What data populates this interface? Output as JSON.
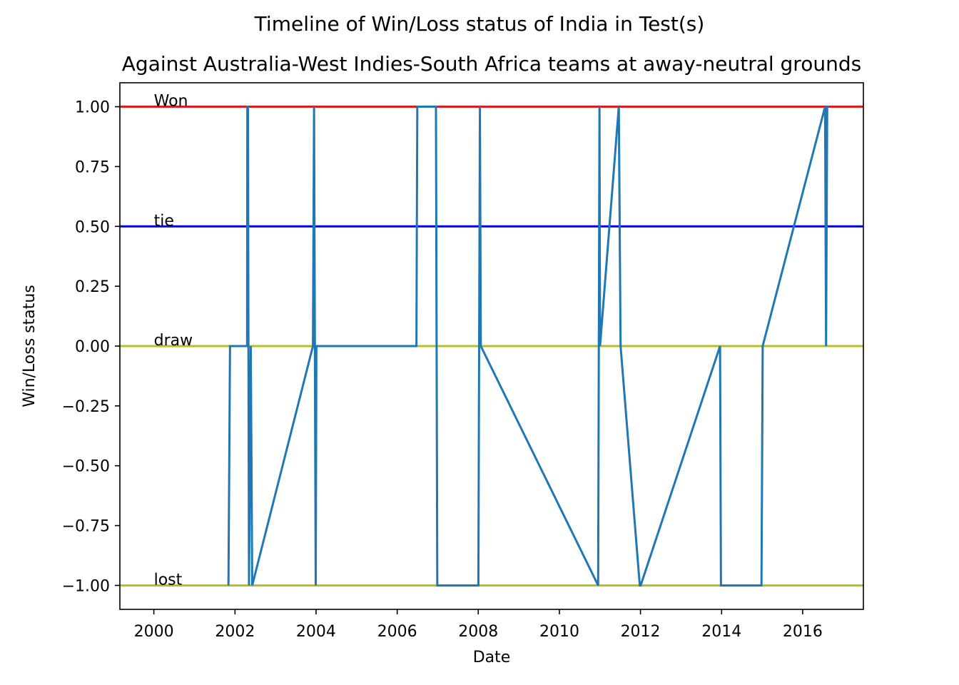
{
  "chart_data": {
    "type": "line",
    "title": "Timeline of Win/Loss status of India in Test(s)",
    "subtitle": "Against Australia-West Indies-South Africa teams at away-neutral grounds",
    "xlabel": "Date",
    "ylabel": "Win/Loss status",
    "xlim": [
      "1999-03-01",
      "2017-07-01"
    ],
    "ylim": [
      -1.1,
      1.1
    ],
    "grid": false,
    "x_ticks": [
      "2000",
      "2002",
      "2004",
      "2006",
      "2008",
      "2010",
      "2012",
      "2014",
      "2016"
    ],
    "y_ticks": [
      "1.00",
      "0.75",
      "0.50",
      "0.25",
      "0.00",
      "−0.25",
      "−0.50",
      "−0.75",
      "−1.00"
    ],
    "reference_lines": [
      {
        "label": "Won",
        "y": 1,
        "color": "#e41a1c"
      },
      {
        "label": "tie",
        "y": 0.5,
        "color": "#0000dd"
      },
      {
        "label": "draw",
        "y": 0,
        "color": "#bcbd22"
      },
      {
        "label": "lost",
        "y": -1,
        "color": "#bcbd22"
      }
    ],
    "series": [
      {
        "color": "#1f77b4",
        "points": [
          {
            "x": "2001-11-03",
            "y": -1
          },
          {
            "x": "2001-11-17",
            "y": 0
          },
          {
            "x": "2002-04-20",
            "y": 0
          },
          {
            "x": "2002-04-22",
            "y": 1
          },
          {
            "x": "2002-04-28",
            "y": 1
          },
          {
            "x": "2002-05-02",
            "y": 0
          },
          {
            "x": "2002-05-07",
            "y": -1
          },
          {
            "x": "2002-05-23",
            "y": 0
          },
          {
            "x": "2002-06-05",
            "y": -1
          },
          {
            "x": "2003-12-04",
            "y": 0
          },
          {
            "x": "2003-12-14",
            "y": 1
          },
          {
            "x": "2003-12-29",
            "y": -1
          },
          {
            "x": "2004-01-04",
            "y": 0
          },
          {
            "x": "2006-06-23",
            "y": 0
          },
          {
            "x": "2006-07-01",
            "y": 1
          },
          {
            "x": "2006-12-16",
            "y": 1
          },
          {
            "x": "2006-12-28",
            "y": -1
          },
          {
            "x": "2008-01-02",
            "y": -1
          },
          {
            "x": "2008-01-16",
            "y": 1
          },
          {
            "x": "2008-01-24",
            "y": 0
          },
          {
            "x": "2010-12-16",
            "y": -1
          },
          {
            "x": "2010-12-28",
            "y": 1
          },
          {
            "x": "2011-01-02",
            "y": 0
          },
          {
            "x": "2011-06-20",
            "y": 1
          },
          {
            "x": "2011-07-06",
            "y": 0
          },
          {
            "x": "2011-12-26",
            "y": -1
          },
          {
            "x": "2012-01-03",
            "y": -1
          },
          {
            "x": "2013-12-18",
            "y": 0
          },
          {
            "x": "2013-12-26",
            "y": -1
          },
          {
            "x": "2014-12-26",
            "y": -1
          },
          {
            "x": "2015-01-06",
            "y": 0
          },
          {
            "x": "2016-07-21",
            "y": 1
          },
          {
            "x": "2016-07-30",
            "y": 0
          },
          {
            "x": "2016-08-09",
            "y": 1
          },
          {
            "x": "2016-08-18",
            "y": 1
          }
        ]
      }
    ]
  }
}
